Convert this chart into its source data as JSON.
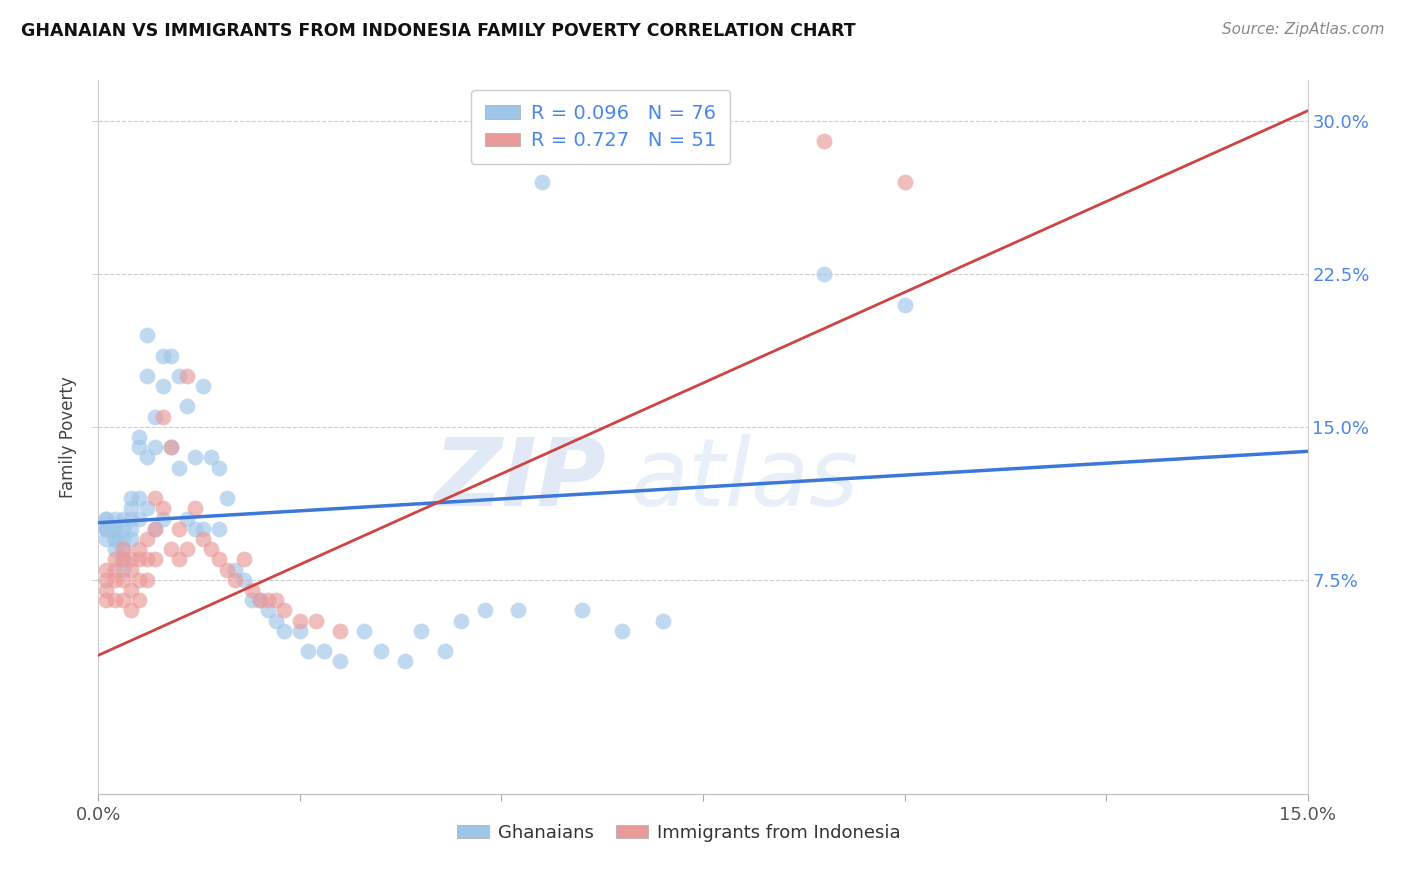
{
  "title": "GHANAIAN VS IMMIGRANTS FROM INDONESIA FAMILY POVERTY CORRELATION CHART",
  "source": "Source: ZipAtlas.com",
  "ylabel": "Family Poverty",
  "ytick_vals": [
    0.075,
    0.15,
    0.225,
    0.3
  ],
  "ytick_labels": [
    "7.5%",
    "15.0%",
    "22.5%",
    "30.0%"
  ],
  "xmin": 0.0,
  "xmax": 0.15,
  "ymin": -0.03,
  "ymax": 0.32,
  "blue_color": "#9fc5e8",
  "pink_color": "#ea9999",
  "blue_line_color": "#3c78d8",
  "pink_line_color": "#cc4444",
  "legend_r_color": "#4a86e8",
  "legend_n_color": "#4a86e8",
  "watermark_zip": "ZIP",
  "watermark_atlas": "atlas",
  "blue_scatter_x": [
    0.001,
    0.001,
    0.001,
    0.001,
    0.001,
    0.001,
    0.002,
    0.002,
    0.002,
    0.002,
    0.002,
    0.002,
    0.003,
    0.003,
    0.003,
    0.003,
    0.003,
    0.003,
    0.004,
    0.004,
    0.004,
    0.004,
    0.004,
    0.005,
    0.005,
    0.005,
    0.005,
    0.006,
    0.006,
    0.006,
    0.006,
    0.007,
    0.007,
    0.007,
    0.008,
    0.008,
    0.008,
    0.009,
    0.009,
    0.01,
    0.01,
    0.011,
    0.011,
    0.012,
    0.012,
    0.013,
    0.013,
    0.014,
    0.015,
    0.015,
    0.016,
    0.017,
    0.018,
    0.019,
    0.02,
    0.021,
    0.022,
    0.023,
    0.025,
    0.026,
    0.028,
    0.03,
    0.033,
    0.035,
    0.038,
    0.04,
    0.043,
    0.045,
    0.048,
    0.052,
    0.055,
    0.06,
    0.065,
    0.07,
    0.09,
    0.1
  ],
  "blue_scatter_y": [
    0.1,
    0.1,
    0.105,
    0.105,
    0.1,
    0.095,
    0.105,
    0.1,
    0.1,
    0.095,
    0.095,
    0.09,
    0.105,
    0.1,
    0.095,
    0.09,
    0.085,
    0.08,
    0.115,
    0.11,
    0.105,
    0.1,
    0.095,
    0.145,
    0.14,
    0.115,
    0.105,
    0.195,
    0.175,
    0.135,
    0.11,
    0.155,
    0.14,
    0.1,
    0.185,
    0.17,
    0.105,
    0.185,
    0.14,
    0.175,
    0.13,
    0.16,
    0.105,
    0.135,
    0.1,
    0.17,
    0.1,
    0.135,
    0.13,
    0.1,
    0.115,
    0.08,
    0.075,
    0.065,
    0.065,
    0.06,
    0.055,
    0.05,
    0.05,
    0.04,
    0.04,
    0.035,
    0.05,
    0.04,
    0.035,
    0.05,
    0.04,
    0.055,
    0.06,
    0.06,
    0.27,
    0.06,
    0.05,
    0.055,
    0.225,
    0.21
  ],
  "pink_scatter_x": [
    0.001,
    0.001,
    0.001,
    0.001,
    0.002,
    0.002,
    0.002,
    0.002,
    0.003,
    0.003,
    0.003,
    0.003,
    0.004,
    0.004,
    0.004,
    0.004,
    0.005,
    0.005,
    0.005,
    0.005,
    0.006,
    0.006,
    0.006,
    0.007,
    0.007,
    0.007,
    0.008,
    0.008,
    0.009,
    0.009,
    0.01,
    0.01,
    0.011,
    0.011,
    0.012,
    0.013,
    0.014,
    0.015,
    0.016,
    0.017,
    0.018,
    0.019,
    0.02,
    0.021,
    0.022,
    0.023,
    0.025,
    0.027,
    0.03,
    0.09,
    0.1
  ],
  "pink_scatter_y": [
    0.08,
    0.075,
    0.07,
    0.065,
    0.085,
    0.08,
    0.075,
    0.065,
    0.09,
    0.085,
    0.075,
    0.065,
    0.085,
    0.08,
    0.07,
    0.06,
    0.09,
    0.085,
    0.075,
    0.065,
    0.095,
    0.085,
    0.075,
    0.115,
    0.1,
    0.085,
    0.155,
    0.11,
    0.14,
    0.09,
    0.1,
    0.085,
    0.175,
    0.09,
    0.11,
    0.095,
    0.09,
    0.085,
    0.08,
    0.075,
    0.085,
    0.07,
    0.065,
    0.065,
    0.065,
    0.06,
    0.055,
    0.055,
    0.05,
    0.29,
    0.27
  ],
  "blue_line_x": [
    0.0,
    0.15
  ],
  "blue_line_y": [
    0.103,
    0.138
  ],
  "pink_line_x": [
    0.0,
    0.15
  ],
  "pink_line_y": [
    0.038,
    0.305
  ],
  "grid_color": "#cccccc",
  "background_color": "#ffffff"
}
